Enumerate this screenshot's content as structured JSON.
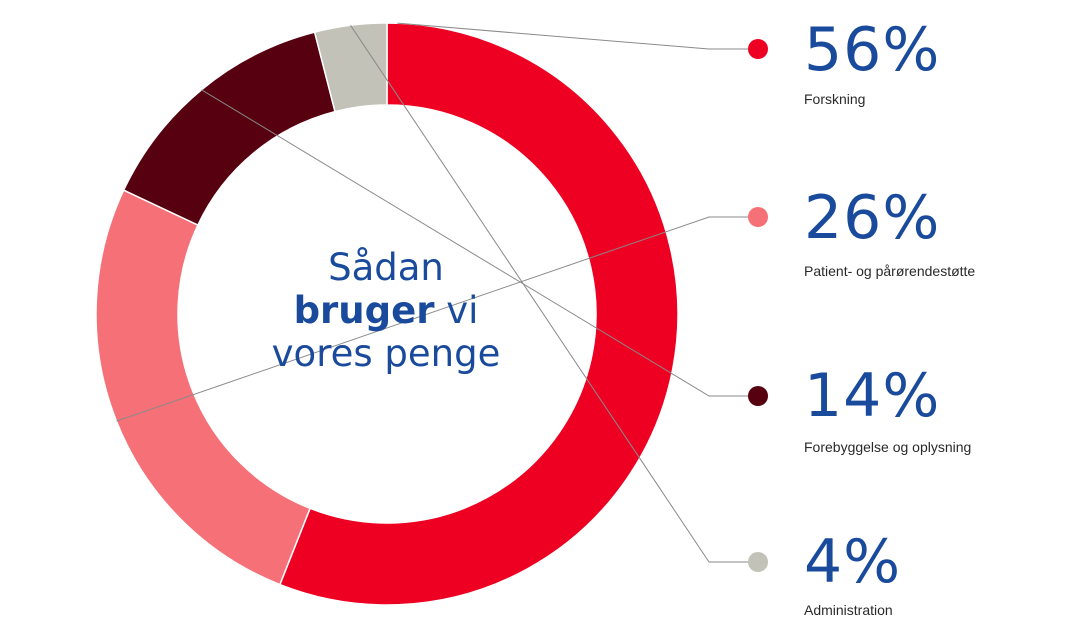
{
  "chart_data": {
    "type": "pie",
    "title_parts": [
      "Sådan",
      "bruger",
      "vi",
      "vores penge"
    ],
    "slices": [
      {
        "label": "Forskning",
        "value": 56,
        "value_text": "56%",
        "color": "#ee0022"
      },
      {
        "label": "Patient- og pårørendestøtte",
        "value": 26,
        "value_text": "26%",
        "color": "#f57077"
      },
      {
        "label": "Forebyggelse og oplysning",
        "value": 14,
        "value_text": "14%",
        "color": "#560010"
      },
      {
        "label": "Administration",
        "value": 4,
        "value_text": "4%",
        "color": "#c2c2b8"
      }
    ]
  },
  "colors": {
    "text_blue": "#1a4a9c",
    "leader_line": "#8a8a8a"
  }
}
